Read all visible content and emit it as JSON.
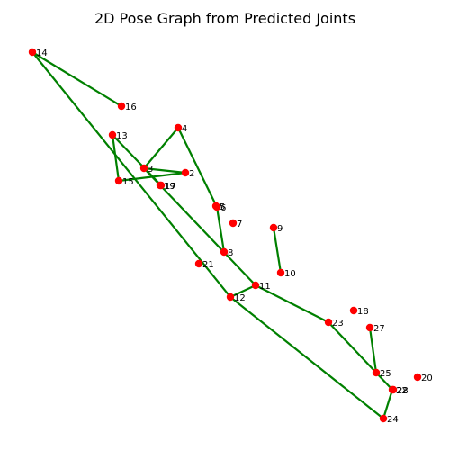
{
  "chart_data": {
    "type": "scatter",
    "title": "2D Pose Graph from Predicted Joints",
    "xlabel": "",
    "ylabel": "",
    "axes_visible": false,
    "grid": false,
    "y_inverted": true,
    "xlim": [
      0,
      500
    ],
    "ylim": [
      500,
      0
    ],
    "point_color": "#ff0000",
    "edge_color": "#008000",
    "joints": [
      {
        "id": "2",
        "x": 206,
        "y": 192
      },
      {
        "id": "3",
        "x": 160,
        "y": 187
      },
      {
        "id": "4",
        "x": 198,
        "y": 142
      },
      {
        "id": "5",
        "x": 240,
        "y": 229
      },
      {
        "id": "6",
        "x": 241,
        "y": 230
      },
      {
        "id": "7",
        "x": 259,
        "y": 248
      },
      {
        "id": "8",
        "x": 249,
        "y": 280
      },
      {
        "id": "9",
        "x": 304,
        "y": 253
      },
      {
        "id": "10",
        "x": 312,
        "y": 303
      },
      {
        "id": "11",
        "x": 284,
        "y": 317
      },
      {
        "id": "12",
        "x": 256,
        "y": 330
      },
      {
        "id": "13",
        "x": 125,
        "y": 150
      },
      {
        "id": "14",
        "x": 36,
        "y": 58
      },
      {
        "id": "15",
        "x": 132,
        "y": 201
      },
      {
        "id": "16",
        "x": 135,
        "y": 118
      },
      {
        "id": "17",
        "x": 179,
        "y": 206
      },
      {
        "id": "18",
        "x": 393,
        "y": 345
      },
      {
        "id": "19",
        "x": 178,
        "y": 206
      },
      {
        "id": "20",
        "x": 464,
        "y": 419
      },
      {
        "id": "21",
        "x": 221,
        "y": 293
      },
      {
        "id": "22",
        "x": 436,
        "y": 433
      },
      {
        "id": "23",
        "x": 365,
        "y": 358
      },
      {
        "id": "24",
        "x": 426,
        "y": 465
      },
      {
        "id": "25",
        "x": 418,
        "y": 414
      },
      {
        "id": "27",
        "x": 411,
        "y": 364
      },
      {
        "id": "28",
        "x": 437,
        "y": 433
      }
    ],
    "edges": [
      [
        "14",
        "16"
      ],
      [
        "14",
        "12"
      ],
      [
        "3",
        "4"
      ],
      [
        "4",
        "6"
      ],
      [
        "6",
        "8"
      ],
      [
        "3",
        "2"
      ],
      [
        "2",
        "15"
      ],
      [
        "13",
        "15"
      ],
      [
        "13",
        "17"
      ],
      [
        "3",
        "11"
      ],
      [
        "11",
        "12"
      ],
      [
        "11",
        "23"
      ],
      [
        "23",
        "25"
      ],
      [
        "25",
        "27"
      ],
      [
        "25",
        "22"
      ],
      [
        "12",
        "24"
      ],
      [
        "24",
        "22"
      ],
      [
        "9",
        "10"
      ]
    ]
  }
}
